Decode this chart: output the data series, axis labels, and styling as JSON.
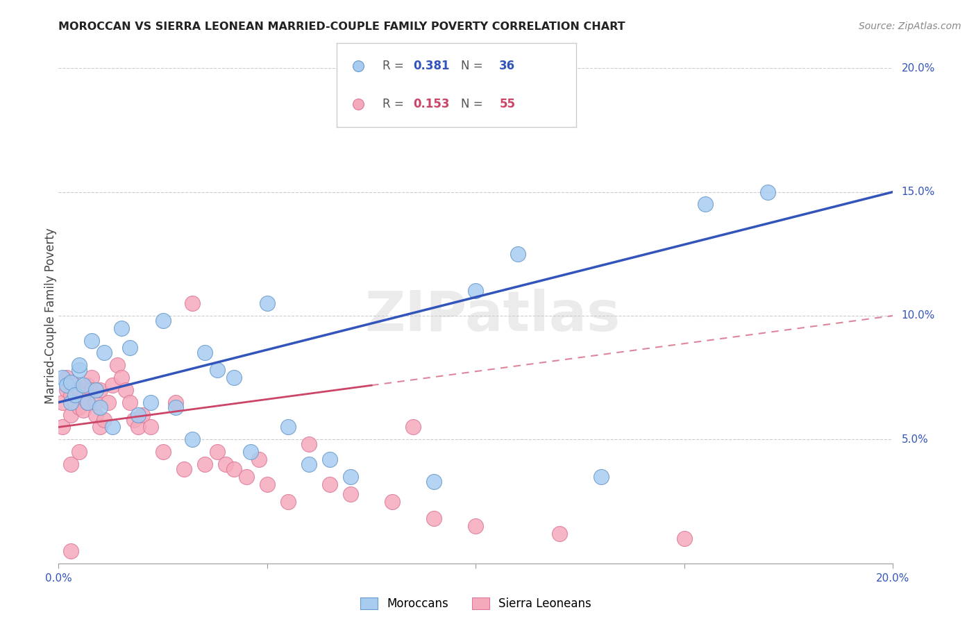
{
  "title": "MOROCCAN VS SIERRA LEONEAN MARRIED-COUPLE FAMILY POVERTY CORRELATION CHART",
  "source": "Source: ZipAtlas.com",
  "ylabel": "Married-Couple Family Poverty",
  "xlim": [
    0.0,
    0.2
  ],
  "ylim": [
    0.0,
    0.2
  ],
  "xticks": [
    0.0,
    0.05,
    0.1,
    0.15,
    0.2
  ],
  "yticks": [
    0.05,
    0.1,
    0.15,
    0.2
  ],
  "xtick_labels": [
    "0.0%",
    "",
    "",
    "",
    "20.0%"
  ],
  "ytick_labels_right": [
    "5.0%",
    "10.0%",
    "15.0%",
    "20.0%"
  ],
  "moroccan_color": "#A8CCF0",
  "moroccan_edge_color": "#6699CC",
  "sierraleonean_color": "#F5AABB",
  "sierraleonean_edge_color": "#DD7799",
  "blue_line_color": "#3355BB",
  "pink_line_color": "#CC4466",
  "R_moroccan": 0.381,
  "N_moroccan": 36,
  "R_sierraleonean": 0.153,
  "N_sierraleonean": 55,
  "moroccan_x": [
    0.001,
    0.002,
    0.003,
    0.003,
    0.004,
    0.005,
    0.006,
    0.007,
    0.008,
    0.009,
    0.01,
    0.011,
    0.013,
    0.015,
    0.017,
    0.019,
    0.022,
    0.025,
    0.028,
    0.032,
    0.035,
    0.038,
    0.042,
    0.046,
    0.05,
    0.055,
    0.06,
    0.065,
    0.07,
    0.09,
    0.1,
    0.11,
    0.13,
    0.155,
    0.17,
    0.005
  ],
  "moroccan_y": [
    0.075,
    0.072,
    0.065,
    0.073,
    0.068,
    0.078,
    0.072,
    0.065,
    0.09,
    0.07,
    0.063,
    0.085,
    0.055,
    0.095,
    0.087,
    0.06,
    0.065,
    0.098,
    0.063,
    0.05,
    0.085,
    0.078,
    0.075,
    0.045,
    0.105,
    0.055,
    0.04,
    0.042,
    0.035,
    0.033,
    0.11,
    0.125,
    0.035,
    0.145,
    0.15,
    0.08
  ],
  "sierraleonean_x": [
    0.001,
    0.001,
    0.002,
    0.002,
    0.003,
    0.003,
    0.003,
    0.004,
    0.004,
    0.005,
    0.005,
    0.005,
    0.006,
    0.006,
    0.007,
    0.007,
    0.008,
    0.008,
    0.009,
    0.009,
    0.01,
    0.01,
    0.011,
    0.012,
    0.013,
    0.014,
    0.015,
    0.016,
    0.017,
    0.018,
    0.019,
    0.02,
    0.022,
    0.025,
    0.028,
    0.03,
    0.032,
    0.035,
    0.038,
    0.04,
    0.042,
    0.045,
    0.048,
    0.05,
    0.055,
    0.06,
    0.065,
    0.07,
    0.08,
    0.085,
    0.09,
    0.1,
    0.12,
    0.15,
    0.003
  ],
  "sierraleonean_y": [
    0.065,
    0.055,
    0.07,
    0.075,
    0.06,
    0.068,
    0.04,
    0.065,
    0.072,
    0.063,
    0.07,
    0.045,
    0.068,
    0.062,
    0.072,
    0.065,
    0.075,
    0.07,
    0.06,
    0.065,
    0.055,
    0.07,
    0.058,
    0.065,
    0.072,
    0.08,
    0.075,
    0.07,
    0.065,
    0.058,
    0.055,
    0.06,
    0.055,
    0.045,
    0.065,
    0.038,
    0.105,
    0.04,
    0.045,
    0.04,
    0.038,
    0.035,
    0.042,
    0.032,
    0.025,
    0.048,
    0.032,
    0.028,
    0.025,
    0.055,
    0.018,
    0.015,
    0.012,
    0.01,
    0.005
  ],
  "watermark": "ZIPatlas",
  "background_color": "#ffffff",
  "grid_color": "#cccccc"
}
